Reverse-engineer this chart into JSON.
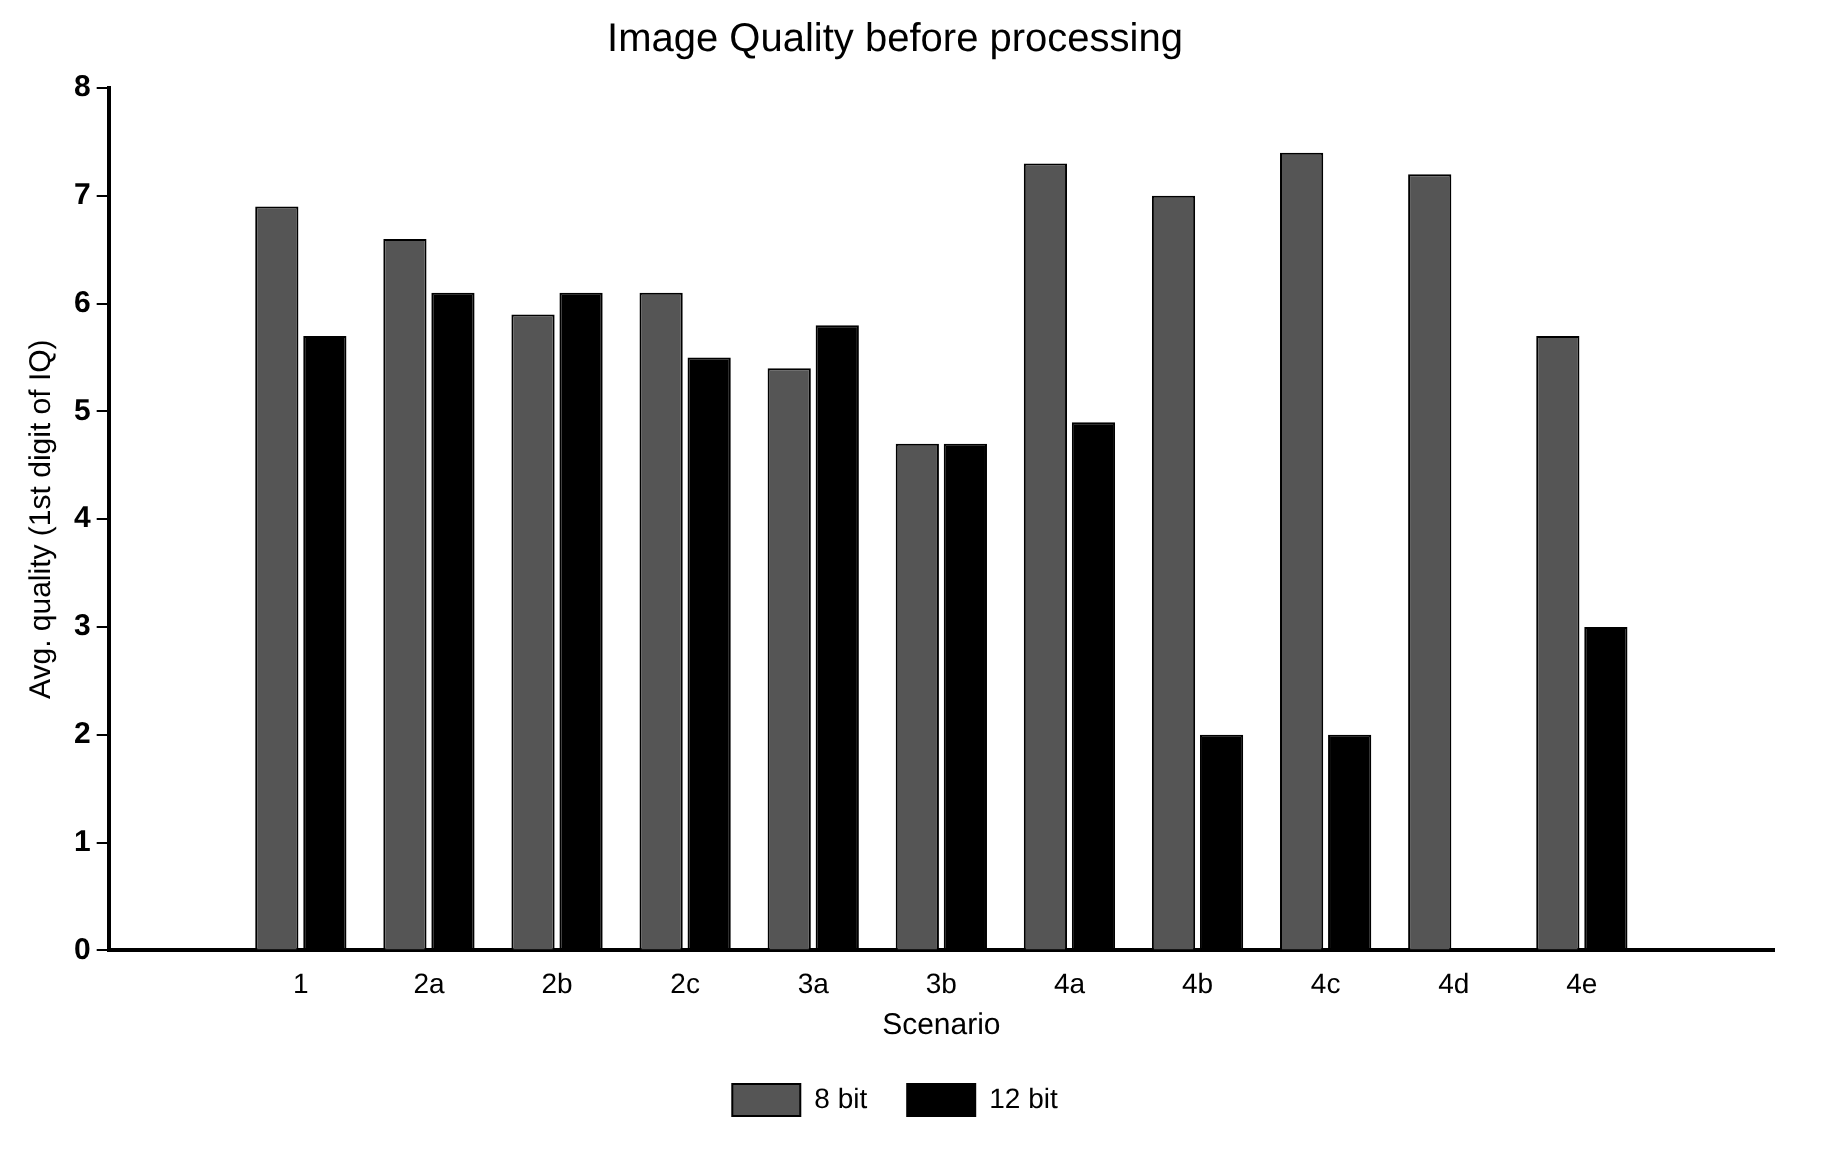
{
  "chart_data": {
    "type": "bar",
    "title": "Image Quality before processing",
    "xlabel": "Scenario",
    "ylabel": "Avg. quality (1st digit of IQ)",
    "categories": [
      null,
      "1",
      "2a",
      "2b",
      "2c",
      "3a",
      "3b",
      "4a",
      "4b",
      "4c",
      "4d",
      "4e",
      null
    ],
    "series": [
      {
        "name": "8 bit",
        "color": "#555555",
        "values": [
          null,
          6.9,
          6.6,
          5.9,
          6.1,
          5.4,
          4.7,
          7.3,
          7.0,
          7.4,
          7.2,
          5.7,
          null
        ]
      },
      {
        "name": "12 bit",
        "color": "#000000",
        "values": [
          null,
          5.7,
          6.1,
          6.1,
          5.5,
          5.8,
          4.7,
          4.9,
          2.0,
          2.0,
          null,
          3.0,
          null
        ]
      }
    ],
    "ylim": [
      0,
      8
    ],
    "yticks": [
      0,
      1,
      2,
      3,
      4,
      5,
      6,
      7,
      8
    ],
    "grid": false,
    "legend": "bottom"
  }
}
